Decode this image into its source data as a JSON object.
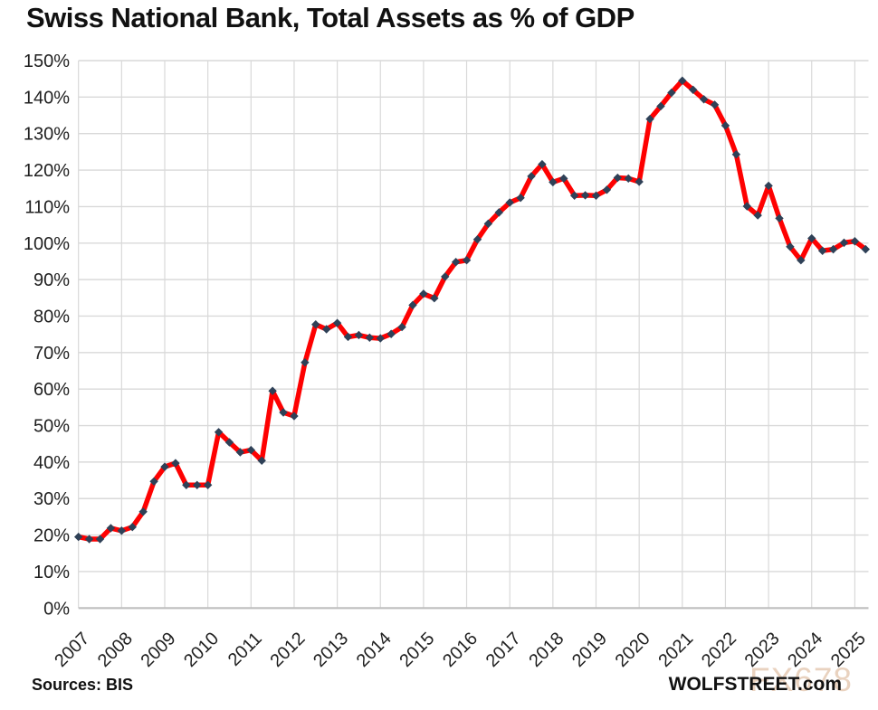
{
  "title": "Swiss National Bank, Total Assets as % of GDP",
  "footer": {
    "sources": "Sources: BIS",
    "site": "WOLFSTREET.com",
    "watermark": "FX678"
  },
  "chart_data": {
    "type": "line",
    "title": "Swiss National Bank, Total Assets as % of GDP",
    "xlabel": "",
    "ylabel": "",
    "frequency": "quarterly",
    "x_start": "2007 Q1",
    "x_end": "2025 Q2",
    "x_tick_labels": [
      "2007",
      "2008",
      "2009",
      "2010",
      "2011",
      "2012",
      "2013",
      "2014",
      "2015",
      "2016",
      "2017",
      "2018",
      "2019",
      "2020",
      "2021",
      "2022",
      "2023",
      "2024",
      "2025"
    ],
    "y_tick_labels": [
      "0%",
      "10%",
      "20%",
      "30%",
      "40%",
      "50%",
      "60%",
      "70%",
      "80%",
      "90%",
      "100%",
      "110%",
      "120%",
      "130%",
      "140%",
      "150%"
    ],
    "y_tick_step": 10,
    "ylim": [
      0,
      150
    ],
    "grid": true,
    "legend_position": "none",
    "grid_color": "#d9d9d9",
    "axis_color": "#bfbfbf",
    "tick_label_color": "#1f1f1f",
    "series": [
      {
        "name": "SNB total assets as % of GDP",
        "color": "#fe0101",
        "marker": "diamond",
        "marker_color": "#2f4157",
        "values": [
          19.5,
          18.9,
          18.9,
          21.9,
          21.2,
          22.2,
          26.4,
          34.7,
          38.7,
          39.7,
          33.7,
          33.7,
          33.7,
          48.2,
          45.4,
          42.7,
          43.3,
          40.4,
          59.5,
          53.6,
          52.6,
          67.3,
          77.7,
          76.4,
          78.1,
          74.3,
          74.8,
          74.1,
          73.9,
          75.1,
          77.0,
          83.0,
          86.1,
          84.9,
          90.8,
          94.8,
          95.3,
          101.0,
          105.3,
          108.4,
          111.1,
          112.4,
          118.3,
          121.6,
          116.7,
          117.7,
          113.0,
          113.1,
          113.0,
          114.6,
          117.9,
          117.7,
          116.8,
          134.0,
          137.5,
          141.2,
          144.5,
          142.0,
          139.4,
          137.9,
          132.2,
          124.3,
          110.1,
          107.6,
          115.7,
          106.8,
          99.0,
          95.3,
          101.3,
          97.9,
          98.3,
          100.1,
          100.5,
          98.3
        ]
      }
    ]
  }
}
